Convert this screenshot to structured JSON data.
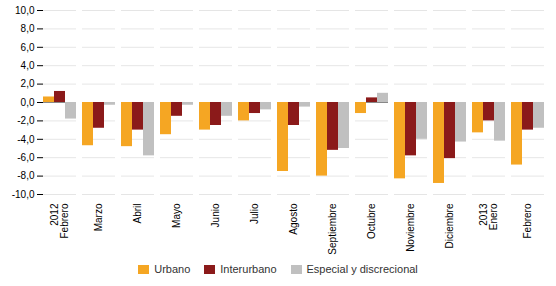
{
  "chart_data": {
    "type": "bar",
    "categories": [
      "2012\nFebrero",
      "Marzo",
      "Abril",
      "Mayo",
      "Junio",
      "Julio",
      "Agosto",
      "Septiembre",
      "Octubre",
      "Noviembre",
      "Diciembre",
      "2013\nEnero",
      "Febrero"
    ],
    "series": [
      {
        "name": "Urbano",
        "color": "#F5A623",
        "values": [
          0.6,
          -4.7,
          -4.8,
          -3.5,
          -3.0,
          -2.0,
          -7.5,
          -8.0,
          -1.2,
          -8.3,
          -8.8,
          -3.3,
          -6.8
        ]
      },
      {
        "name": "Interurbano",
        "color": "#8B1A1A",
        "values": [
          1.2,
          -2.8,
          -3.0,
          -1.5,
          -2.5,
          -1.2,
          -2.5,
          -5.2,
          0.5,
          -5.8,
          -6.1,
          -2.0,
          -3.0
        ]
      },
      {
        "name": "Especial y discrecional",
        "color": "#C0C0C0",
        "values": [
          -1.8,
          -0.3,
          -5.8,
          -0.3,
          -1.5,
          -0.8,
          -0.5,
          -5.0,
          1.0,
          -4.0,
          -4.3,
          -4.2,
          -2.8
        ]
      }
    ],
    "ylim": [
      -10,
      10
    ],
    "yticks": [
      {
        "value": -10,
        "label": "-10,0"
      },
      {
        "value": -8,
        "label": "-8,0"
      },
      {
        "value": -6,
        "label": "-6,0"
      },
      {
        "value": -4,
        "label": "-4,0"
      },
      {
        "value": -2,
        "label": "-2,0"
      },
      {
        "value": 0,
        "label": "0,0"
      },
      {
        "value": 2,
        "label": "2,0"
      },
      {
        "value": 4,
        "label": "4,0"
      },
      {
        "value": 6,
        "label": "6,0"
      },
      {
        "value": 8,
        "label": "8,0"
      },
      {
        "value": 10,
        "label": "10,0"
      }
    ],
    "grid": true,
    "legend": "bottom"
  }
}
